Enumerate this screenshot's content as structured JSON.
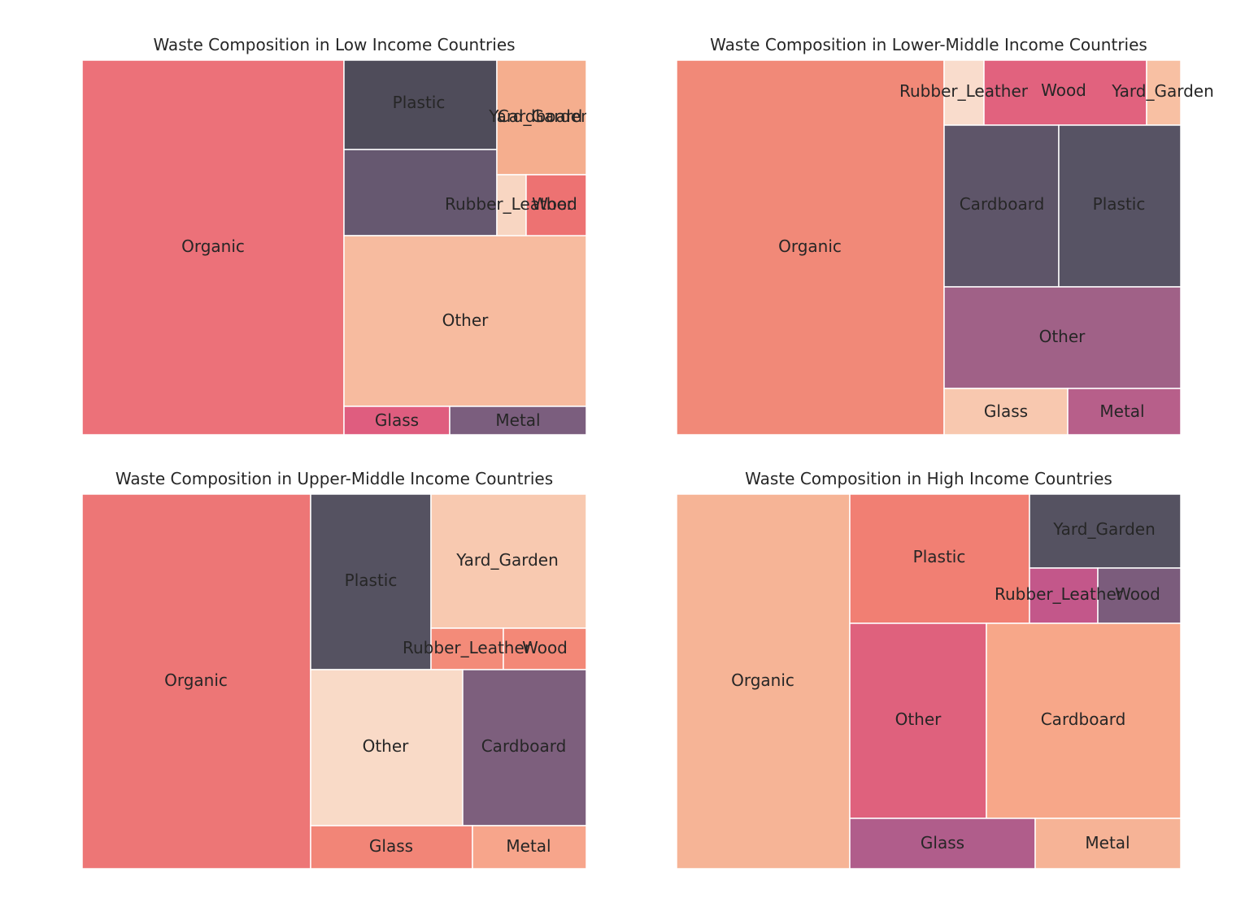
{
  "chart_data": [
    {
      "type": "treemap",
      "title": "Waste Composition in Low Income Countries",
      "cells": [
        {
          "label": "Organic",
          "value": 52,
          "color": "#ec7179"
        },
        {
          "label": "Plastic",
          "value": 7.2,
          "color": "#4f4c5a"
        },
        {
          "label": "Cardboard",
          "value": 6.9,
          "color": "#665870"
        },
        {
          "label": "Yard_Garden",
          "value": 5.4,
          "color": "#f5ae8e"
        },
        {
          "label": "Rubber_Leather",
          "value": 0.9,
          "color": "#f8d6c2"
        },
        {
          "label": "Wood",
          "value": 1.9,
          "color": "#ed7272"
        },
        {
          "label": "Other",
          "value": 21.7,
          "color": "#f7bb9f"
        },
        {
          "label": "Glass",
          "value": 1.5,
          "color": "#df5d7f"
        },
        {
          "label": "Metal",
          "value": 2.5,
          "color": "#7b5e7e"
        }
      ]
    },
    {
      "type": "treemap",
      "title": "Waste Composition in Lower-Middle Income Countries",
      "cells": [
        {
          "label": "Organic",
          "value": 53.1,
          "color": "#f18978"
        },
        {
          "label": "Rubber_Leather",
          "value": 1.4,
          "color": "#f9dccc"
        },
        {
          "label": "Wood",
          "value": 5.5,
          "color": "#e1627e"
        },
        {
          "label": "Yard_Garden",
          "value": 1.4,
          "color": "#f8c0a3"
        },
        {
          "label": "Cardboard",
          "value": 9.8,
          "color": "#5e5569"
        },
        {
          "label": "Plastic",
          "value": 10.2,
          "color": "#575364"
        },
        {
          "label": "Other",
          "value": 12.6,
          "color": "#a06187"
        },
        {
          "label": "Glass",
          "value": 3.2,
          "color": "#f8c8af"
        },
        {
          "label": "Metal",
          "value": 2.8,
          "color": "#b75f8a"
        }
      ]
    },
    {
      "type": "treemap",
      "title": "Waste Composition in Upper-Middle Income Countries",
      "cells": [
        {
          "label": "Organic",
          "value": 45.3,
          "color": "#ed7676"
        },
        {
          "label": "Plastic",
          "value": 11.2,
          "color": "#555261"
        },
        {
          "label": "Yard_Garden",
          "value": 10.5,
          "color": "#f8c9b0"
        },
        {
          "label": "Rubber_Leather",
          "value": 1.6,
          "color": "#f38b79"
        },
        {
          "label": "Wood",
          "value": 1.8,
          "color": "#f38877"
        },
        {
          "label": "Other",
          "value": 12.6,
          "color": "#f9dac7"
        },
        {
          "label": "Cardboard",
          "value": 10.4,
          "color": "#7d5f7d"
        },
        {
          "label": "Glass",
          "value": 3.7,
          "color": "#f28577"
        },
        {
          "label": "Metal",
          "value": 2.6,
          "color": "#f7a58b"
        }
      ]
    },
    {
      "type": "treemap",
      "title": "Waste Composition in High Income Countries",
      "cells": [
        {
          "label": "Organic",
          "value": 34.4,
          "color": "#f6b496"
        },
        {
          "label": "Plastic",
          "value": 11.9,
          "color": "#f17f73"
        },
        {
          "label": "Yard_Garden",
          "value": 5.8,
          "color": "#555261"
        },
        {
          "label": "Rubber_Leather",
          "value": 1.9,
          "color": "#c3578a"
        },
        {
          "label": "Wood",
          "value": 2.3,
          "color": "#7b5c7c"
        },
        {
          "label": "Other",
          "value": 14.2,
          "color": "#df617d"
        },
        {
          "label": "Cardboard",
          "value": 20.1,
          "color": "#f7a789"
        },
        {
          "label": "Glass",
          "value": 5.2,
          "color": "#b05d8b"
        },
        {
          "label": "Metal",
          "value": 4.1,
          "color": "#f6b396"
        }
      ]
    }
  ]
}
